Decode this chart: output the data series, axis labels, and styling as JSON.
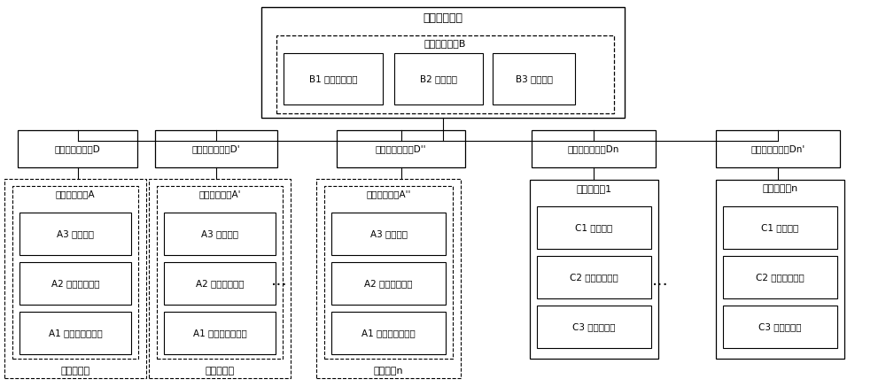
{
  "bg_color": "#ffffff",
  "figsize": [
    10.0,
    4.37
  ],
  "dpi": 100,
  "title": "微网控制中心",
  "energy_label": "能量调度模块B",
  "b_modules": [
    "B1 电量预测模块",
    "B2 博弈模块",
    "B3 通信模块"
  ],
  "charger_labels": [
    "双向充放电装置D",
    "双向充放电装置D'",
    "双向充放电装置D''",
    "双向充放电装置Dn",
    "双向充放电装置Dn'"
  ],
  "ev_outer_labels": [
    "电动汽车一",
    "电动汽车二",
    "电动汽车n"
  ],
  "ev_inner_labels": [
    "车载智能终端A",
    "车载智能终端A'",
    "车载智能终端A''"
  ],
  "ev_modules": [
    "A3 通信模块",
    "A2 人机交互模块",
    "A1 充放电控制模块"
  ],
  "rescue_outer_labels": [
    "电动应援车1",
    "电动应援车n"
  ],
  "rescue_modules": [
    "C1 通信模块",
    "C2 移动控制模块",
    "C3 充放电模块"
  ],
  "dots": "···"
}
